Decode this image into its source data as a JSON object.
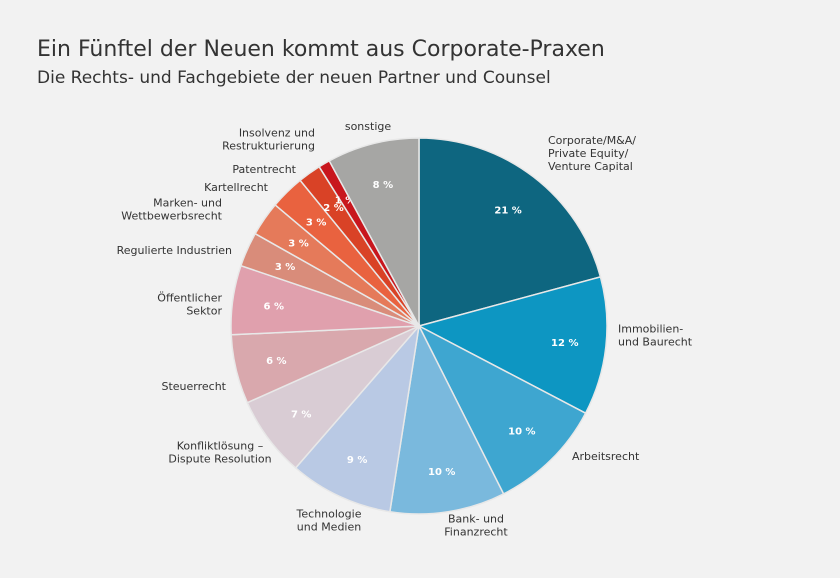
{
  "chart_data": {
    "type": "pie",
    "title": "Ein Fünftel der Neuen kommt aus Corporate-Praxen",
    "subtitle": "Die Rechts- und Fachgebiete der neuen Partner und Counsel",
    "categories": [
      "Corporate/M&A/\nPrivate Equity/\nVenture Capital",
      "Immobilien-\nund Baurecht",
      "Arbeitsrecht",
      "Bank- und\nFinanzrecht",
      "Technologie\nund Medien",
      "Konfliktlösung –\nDispute Resolution",
      "Steuerrecht",
      "Öffentlicher\nSektor",
      "Regulierte Industrien",
      "Marken- und\nWettbewerbsrecht",
      "Kartellrecht",
      "Patentrecht",
      "Insolvenz und\nRestrukturierung",
      "sonstige"
    ],
    "values": [
      21,
      12,
      10,
      10,
      9,
      7,
      6,
      6,
      3,
      3,
      3,
      2,
      1,
      8
    ],
    "value_labels": [
      "21 %",
      "12 %",
      "10 %",
      "10 %",
      "9 %",
      "7 %",
      "6 %",
      "6 %",
      "3 %",
      "3 %",
      "3 %",
      "2 %",
      "1 %",
      "8 %"
    ],
    "colors": [
      "#0e6680",
      "#0d96c2",
      "#3ea6d0",
      "#7ab9dd",
      "#b9c9e4",
      "#d9ccd4",
      "#d9a8ad",
      "#e0a0ad",
      "#d98c7a",
      "#e57a5a",
      "#e9623f",
      "#d94226",
      "#c8161d",
      "#a6a6a4"
    ]
  }
}
